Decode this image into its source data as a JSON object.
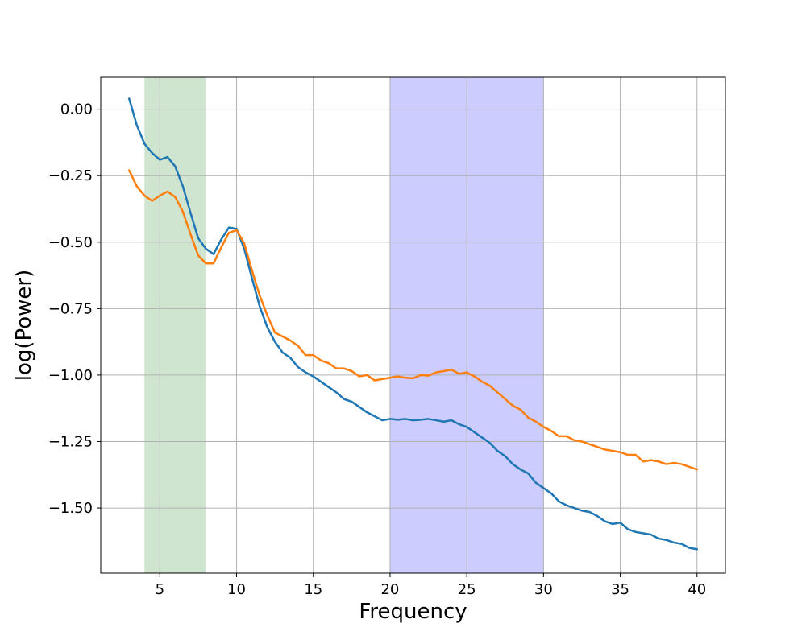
{
  "chart_data": {
    "type": "line",
    "xlabel": "Frequency",
    "ylabel": "log(Power)",
    "xlim": [
      1.15,
      41.85
    ],
    "ylim": [
      -1.745,
      0.12
    ],
    "grid": true,
    "xticks": [
      5,
      10,
      15,
      20,
      25,
      30,
      35,
      40
    ],
    "xtick_labels": [
      "5",
      "10",
      "15",
      "20",
      "25",
      "30",
      "35",
      "40"
    ],
    "yticks": [
      0,
      -0.25,
      -0.5,
      -0.75,
      -1.0,
      -1.25,
      -1.5
    ],
    "ytick_labels": [
      "0.00",
      "−0.25",
      "−0.50",
      "−0.75",
      "−1.00",
      "−1.25",
      "−1.50"
    ],
    "bands": [
      {
        "x0": 4,
        "x1": 8,
        "color": "#cfe5cf"
      },
      {
        "x0": 20,
        "x1": 30,
        "color": "#ccccff"
      }
    ],
    "x": [
      3,
      3.5,
      4,
      4.5,
      5,
      5.5,
      6,
      6.5,
      7,
      7.5,
      8,
      8.5,
      9,
      9.5,
      10,
      10.5,
      11,
      11.5,
      12,
      12.5,
      13,
      13.5,
      14,
      14.5,
      15,
      15.5,
      16,
      16.5,
      17,
      17.5,
      18,
      18.5,
      19,
      19.5,
      20,
      20.5,
      21,
      21.5,
      22,
      22.5,
      23,
      23.5,
      24,
      24.5,
      25,
      25.5,
      26,
      26.5,
      27,
      27.5,
      28,
      28.5,
      29,
      29.5,
      30,
      30.5,
      31,
      31.5,
      32,
      32.5,
      33,
      33.5,
      34,
      34.5,
      35,
      35.5,
      36,
      36.5,
      37,
      37.5,
      38,
      38.5,
      39,
      39.5,
      40
    ],
    "series": [
      {
        "color": "#1f77b4",
        "values": [
          0.04,
          -0.06,
          -0.13,
          -0.165,
          -0.19,
          -0.18,
          -0.215,
          -0.29,
          -0.39,
          -0.485,
          -0.525,
          -0.545,
          -0.49,
          -0.445,
          -0.45,
          -0.525,
          -0.635,
          -0.74,
          -0.82,
          -0.875,
          -0.915,
          -0.935,
          -0.97,
          -0.99,
          -1.005,
          -1.025,
          -1.045,
          -1.065,
          -1.09,
          -1.1,
          -1.12,
          -1.14,
          -1.155,
          -1.17,
          -1.165,
          -1.168,
          -1.165,
          -1.17,
          -1.168,
          -1.165,
          -1.17,
          -1.175,
          -1.17,
          -1.185,
          -1.195,
          -1.215,
          -1.235,
          -1.255,
          -1.285,
          -1.305,
          -1.335,
          -1.355,
          -1.37,
          -1.405,
          -1.425,
          -1.445,
          -1.475,
          -1.49,
          -1.5,
          -1.51,
          -1.515,
          -1.53,
          -1.55,
          -1.56,
          -1.555,
          -1.58,
          -1.59,
          -1.595,
          -1.6,
          -1.615,
          -1.62,
          -1.63,
          -1.635,
          -1.65,
          -1.655
        ]
      },
      {
        "color": "#ff7f0e",
        "values": [
          -0.23,
          -0.29,
          -0.325,
          -0.345,
          -0.325,
          -0.31,
          -0.33,
          -0.385,
          -0.47,
          -0.55,
          -0.58,
          -0.58,
          -0.52,
          -0.465,
          -0.455,
          -0.505,
          -0.605,
          -0.7,
          -0.775,
          -0.84,
          -0.855,
          -0.87,
          -0.89,
          -0.925,
          -0.925,
          -0.945,
          -0.955,
          -0.975,
          -0.975,
          -0.985,
          -1.005,
          -1.0,
          -1.02,
          -1.015,
          -1.01,
          -1.005,
          -1.01,
          -1.012,
          -1.0,
          -1.002,
          -0.99,
          -0.985,
          -0.98,
          -0.995,
          -0.99,
          -1.005,
          -1.025,
          -1.04,
          -1.065,
          -1.09,
          -1.115,
          -1.13,
          -1.16,
          -1.175,
          -1.195,
          -1.21,
          -1.23,
          -1.23,
          -1.245,
          -1.25,
          -1.26,
          -1.27,
          -1.28,
          -1.285,
          -1.29,
          -1.3,
          -1.3,
          -1.325,
          -1.32,
          -1.325,
          -1.335,
          -1.33,
          -1.335,
          -1.345,
          -1.355
        ]
      }
    ]
  }
}
